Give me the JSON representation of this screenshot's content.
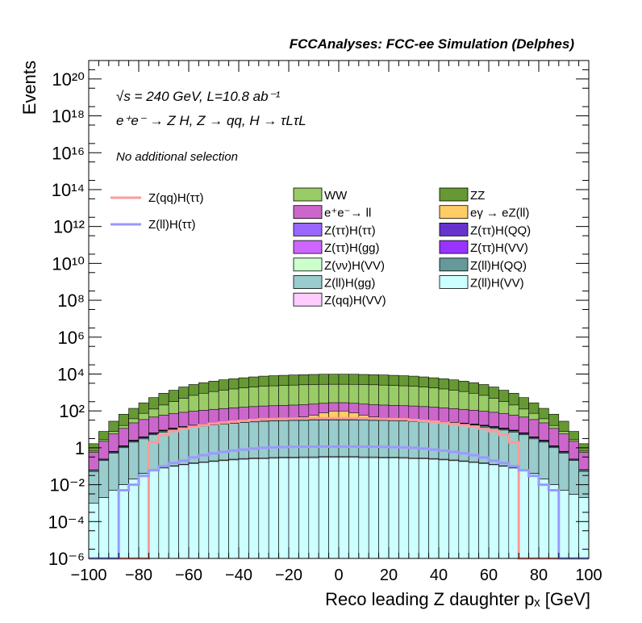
{
  "chart_data": {
    "type": "area",
    "title": "FCCAnalyses: FCC-ee Simulation (Delphes)",
    "annotations": [
      "√s = 240 GeV, L=10.8 ab⁻¹",
      "e⁺e⁻ → Z H, Z → qq, H → τLτL",
      "No additional selection"
    ],
    "xlabel": "Reco leading Z daughter pₓ [GeV]",
    "ylabel": "Events",
    "xlim": [
      -100,
      100
    ],
    "ylim": [
      1e-06,
      1e+21
    ],
    "yscale": "log",
    "x_ticks": [
      "−100",
      "−80",
      "−60",
      "−40",
      "−20",
      "0",
      "20",
      "40",
      "60",
      "80",
      "100"
    ],
    "y_ticks": [
      "10⁻⁶",
      "10⁻⁴",
      "10⁻²",
      "1",
      "10²",
      "10⁴",
      "10⁶",
      "10⁸",
      "10¹⁰",
      "10¹²",
      "10¹⁴",
      "10¹⁶",
      "10¹⁸",
      "10²⁰"
    ],
    "bin_width": 4,
    "x": [
      -98,
      -94,
      -90,
      -86,
      -82,
      -78,
      -74,
      -70,
      -66,
      -62,
      -58,
      -54,
      -50,
      -46,
      -42,
      -38,
      -34,
      -30,
      -26,
      -22,
      -18,
      -14,
      -10,
      -6,
      -2,
      2,
      6,
      10,
      14,
      18,
      22,
      26,
      30,
      34,
      38,
      42,
      46,
      50,
      54,
      58,
      62,
      66,
      70,
      74,
      78,
      82,
      86,
      90,
      94,
      98
    ],
    "stack": [
      {
        "name": "Z(ll)H(VV)",
        "color": "#ccffff",
        "values": [
          0.001,
          0.002,
          0.005,
          0.01,
          0.02,
          0.04,
          0.06,
          0.08,
          0.1,
          0.12,
          0.14,
          0.16,
          0.18,
          0.2,
          0.22,
          0.24,
          0.25,
          0.26,
          0.27,
          0.28,
          0.28,
          0.29,
          0.29,
          0.3,
          0.3,
          0.3,
          0.3,
          0.29,
          0.29,
          0.28,
          0.28,
          0.27,
          0.26,
          0.25,
          0.24,
          0.22,
          0.2,
          0.18,
          0.16,
          0.14,
          0.12,
          0.1,
          0.08,
          0.06,
          0.04,
          0.02,
          0.01,
          0.005,
          0.003,
          0.002
        ]
      },
      {
        "name": "Z(qq)H(VV)",
        "color": "#ffccff",
        "values": [
          0,
          0,
          0,
          0,
          0,
          0.001,
          0.002,
          0.003,
          0.005,
          0.007,
          0.01,
          0.012,
          0.015,
          0.018,
          0.02,
          0.022,
          0.024,
          0.026,
          0.028,
          0.03,
          0.031,
          0.032,
          0.033,
          0.034,
          0.034,
          0.034,
          0.034,
          0.033,
          0.032,
          0.031,
          0.03,
          0.028,
          0.026,
          0.024,
          0.022,
          0.02,
          0.018,
          0.015,
          0.012,
          0.01,
          0.007,
          0.005,
          0.003,
          0.002,
          0.001,
          0,
          0,
          0,
          0,
          0
        ]
      },
      {
        "name": "Z(ll)H(gg)",
        "color": "#99cccc",
        "values": [
          0.05,
          0.2,
          0.5,
          1,
          2,
          3,
          5,
          7,
          9,
          11,
          13,
          15,
          17,
          19,
          21,
          23,
          25,
          27,
          28,
          29,
          30,
          30,
          31,
          31,
          31,
          31,
          31,
          31,
          30,
          30,
          29,
          28,
          27,
          25,
          23,
          21,
          19,
          17,
          15,
          13,
          11,
          9,
          7,
          5,
          3,
          2,
          1,
          0.5,
          0.2,
          0.05
        ]
      },
      {
        "name": "Z(ll)H(QQ)",
        "color": "#669999",
        "values": [
          0.01,
          0.03,
          0.08,
          0.15,
          0.3,
          0.5,
          0.8,
          1.1,
          1.4,
          1.7,
          2,
          2.3,
          2.6,
          2.9,
          3.1,
          3.3,
          3.5,
          3.7,
          3.8,
          3.9,
          4,
          4,
          4.1,
          4.1,
          4.1,
          4.1,
          4.1,
          4.1,
          4,
          4,
          3.9,
          3.8,
          3.7,
          3.5,
          3.3,
          3.1,
          2.9,
          2.6,
          2.3,
          2,
          1.7,
          1.4,
          1.1,
          0.8,
          0.5,
          0.3,
          0.15,
          0.08,
          0.03,
          0.01
        ]
      },
      {
        "name": "Z(νν)H(VV)",
        "color": "#ccffcc",
        "values": [
          0,
          0,
          0.001,
          0.003,
          0.01,
          0.03,
          0.06,
          0.1,
          0.15,
          0.2,
          0.25,
          0.3,
          0.35,
          0.4,
          0.45,
          0.5,
          0.55,
          0.6,
          0.65,
          0.7,
          0.72,
          0.74,
          0.75,
          0.76,
          0.76,
          0.76,
          0.76,
          0.75,
          0.74,
          0.72,
          0.7,
          0.65,
          0.6,
          0.55,
          0.5,
          0.45,
          0.4,
          0.35,
          0.3,
          0.25,
          0.2,
          0.15,
          0.1,
          0.06,
          0.03,
          0.01,
          0.003,
          0.001,
          0,
          0
        ]
      },
      {
        "name": "Z(ττ)H(VV)",
        "color": "#9933ff",
        "values": [
          0,
          0,
          0,
          0,
          0.001,
          0.003,
          0.006,
          0.01,
          0.015,
          0.02,
          0.025,
          0.03,
          0.035,
          0.04,
          0.045,
          0.05,
          0.055,
          0.06,
          0.063,
          0.066,
          0.068,
          0.07,
          0.071,
          0.072,
          0.072,
          0.072,
          0.072,
          0.071,
          0.07,
          0.068,
          0.066,
          0.063,
          0.06,
          0.055,
          0.05,
          0.045,
          0.04,
          0.035,
          0.03,
          0.025,
          0.02,
          0.015,
          0.01,
          0.006,
          0.003,
          0.001,
          0,
          0,
          0,
          0
        ]
      },
      {
        "name": "Z(ττ)H(gg)",
        "color": "#cc66ff",
        "values": [
          0.001,
          0.005,
          0.02,
          0.05,
          0.1,
          0.15,
          0.2,
          0.25,
          0.3,
          0.35,
          0.4,
          0.45,
          0.5,
          0.55,
          0.6,
          0.65,
          0.68,
          0.7,
          0.72,
          0.74,
          0.75,
          0.76,
          0.77,
          0.78,
          0.78,
          0.78,
          0.78,
          0.77,
          0.76,
          0.75,
          0.74,
          0.72,
          0.7,
          0.68,
          0.65,
          0.6,
          0.55,
          0.5,
          0.45,
          0.4,
          0.35,
          0.3,
          0.25,
          0.2,
          0.15,
          0.1,
          0.05,
          0.02,
          0.005,
          0.001
        ]
      },
      {
        "name": "Z(ττ)H(QQ)",
        "color": "#6633cc",
        "values": [
          0.001,
          0.005,
          0.02,
          0.05,
          0.1,
          0.2,
          0.3,
          0.4,
          0.5,
          0.6,
          0.7,
          0.8,
          0.9,
          1,
          1.1,
          1.2,
          1.3,
          1.4,
          1.45,
          1.5,
          1.55,
          1.6,
          1.62,
          1.64,
          1.65,
          1.65,
          1.64,
          1.62,
          1.6,
          1.55,
          1.5,
          1.45,
          1.4,
          1.3,
          1.2,
          1.1,
          1,
          0.9,
          0.8,
          0.7,
          0.6,
          0.5,
          0.4,
          0.3,
          0.2,
          0.1,
          0.05,
          0.02,
          0.005,
          0.001
        ]
      },
      {
        "name": "Z(ττ)H(ττ)",
        "color": "#9966ff",
        "values": [
          0.0001,
          0.0003,
          0.001,
          0.002,
          0.003,
          0.005,
          0.007,
          0.009,
          0.011,
          0.013,
          0.015,
          0.017,
          0.019,
          0.021,
          0.023,
          0.025,
          0.027,
          0.029,
          0.03,
          0.031,
          0.032,
          0.033,
          0.034,
          0.035,
          0.035,
          0.035,
          0.035,
          0.034,
          0.033,
          0.032,
          0.031,
          0.03,
          0.029,
          0.027,
          0.025,
          0.023,
          0.021,
          0.019,
          0.017,
          0.015,
          0.013,
          0.011,
          0.009,
          0.007,
          0.005,
          0.003,
          0.002,
          0.001,
          0.0003,
          0.0001
        ]
      },
      {
        "name": "eγ → eZ(ll)",
        "color": "#ffcc66",
        "values": [
          0,
          0,
          0,
          0,
          0,
          0,
          0,
          0,
          0,
          0,
          0,
          0,
          0,
          0,
          0,
          0,
          0,
          0.5,
          1,
          2,
          5,
          10,
          20,
          40,
          60,
          60,
          40,
          20,
          10,
          5,
          2,
          1,
          0.5,
          0,
          0,
          0,
          0,
          0,
          0,
          0,
          0,
          0,
          0,
          0,
          0,
          0,
          0,
          0,
          0,
          0
        ]
      },
      {
        "name": "e⁺e⁻→ ll",
        "color": "#cc66cc",
        "values": [
          0.5,
          2,
          5,
          10,
          20,
          30,
          40,
          50,
          60,
          70,
          80,
          90,
          100,
          110,
          120,
          130,
          140,
          150,
          155,
          160,
          165,
          170,
          175,
          180,
          180,
          180,
          180,
          175,
          170,
          165,
          160,
          155,
          150,
          140,
          130,
          120,
          110,
          100,
          90,
          80,
          70,
          60,
          50,
          40,
          30,
          20,
          10,
          5,
          2,
          0.5
        ]
      },
      {
        "name": "WW",
        "color": "#99cc66",
        "values": [
          0.1,
          0.5,
          2,
          5,
          15,
          40,
          80,
          150,
          250,
          400,
          600,
          800,
          1000,
          1200,
          1400,
          1600,
          1800,
          2000,
          2100,
          2200,
          2300,
          2400,
          2450,
          2500,
          2500,
          2500,
          2500,
          2450,
          2400,
          2300,
          2200,
          2100,
          2000,
          1800,
          1600,
          1400,
          1200,
          1000,
          800,
          600,
          400,
          250,
          150,
          80,
          40,
          15,
          5,
          2,
          0.5,
          0.1
        ]
      },
      {
        "name": "ZZ",
        "color": "#669933",
        "values": [
          1,
          5,
          20,
          50,
          100,
          200,
          400,
          700,
          1000,
          1500,
          2000,
          2500,
          3000,
          3500,
          4000,
          4500,
          5000,
          5500,
          5800,
          6100,
          6400,
          6600,
          6800,
          7000,
          7000,
          7000,
          7000,
          6800,
          6600,
          6400,
          6100,
          5800,
          5500,
          5000,
          4500,
          4000,
          3500,
          3000,
          2500,
          2000,
          1500,
          1000,
          700,
          400,
          200,
          100,
          50,
          20,
          5,
          1
        ]
      }
    ],
    "overlays": [
      {
        "name": "Z(qq)H(ττ)",
        "color": "#ff9999",
        "values": [
          0,
          0,
          0,
          0,
          0,
          0,
          2,
          5,
          8,
          11,
          14,
          17,
          20,
          23,
          26,
          29,
          32,
          35,
          36,
          37,
          38,
          39,
          40,
          40,
          40,
          40,
          40,
          39,
          38,
          37,
          36,
          35,
          32,
          29,
          26,
          23,
          20,
          17,
          14,
          11,
          8,
          5,
          2,
          0,
          0,
          0,
          0,
          0,
          0,
          0
        ]
      },
      {
        "name": "Z(ll)H(ττ)",
        "color": "#9999ff",
        "values": [
          0,
          0,
          0,
          0.005,
          0.01,
          0.03,
          0.06,
          0.1,
          0.15,
          0.2,
          0.3,
          0.4,
          0.5,
          0.6,
          0.7,
          0.8,
          0.9,
          1,
          1.05,
          1.1,
          1.12,
          1.14,
          1.15,
          1.16,
          1.16,
          1.16,
          1.16,
          1.15,
          1.14,
          1.12,
          1.1,
          1.05,
          1,
          0.9,
          0.8,
          0.7,
          0.6,
          0.5,
          0.4,
          0.3,
          0.2,
          0.15,
          0.1,
          0.06,
          0.03,
          0.01,
          0.005,
          0,
          0,
          0
        ]
      }
    ],
    "legend": {
      "left": [
        "Z(qq)H(ττ)",
        "Z(ll)H(ττ)"
      ],
      "grid": [
        [
          "WW",
          "ZZ"
        ],
        [
          "e⁺e⁻→ ll",
          "eγ → eZ(ll)"
        ],
        [
          "Z(ττ)H(ττ)",
          "Z(ττ)H(QQ)"
        ],
        [
          "Z(ττ)H(gg)",
          "Z(ττ)H(VV)"
        ],
        [
          "Z(νν)H(VV)",
          "Z(ll)H(QQ)"
        ],
        [
          "Z(ll)H(gg)",
          "Z(ll)H(VV)"
        ],
        [
          "Z(qq)H(VV)",
          ""
        ]
      ]
    },
    "legend_placement": "top-right",
    "grid": false
  }
}
